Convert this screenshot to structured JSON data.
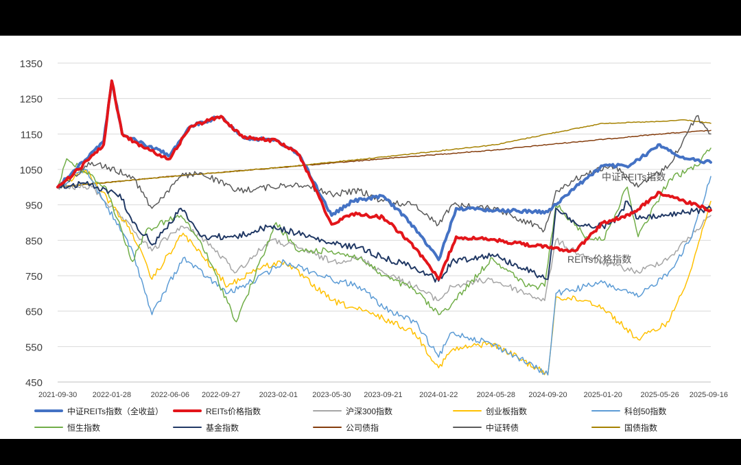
{
  "chart_data": {
    "type": "line",
    "y_ticks": [
      450,
      550,
      650,
      750,
      850,
      950,
      1050,
      1150,
      1250,
      1350
    ],
    "ylim": [
      450,
      1350
    ],
    "x_ticks": [
      "2021-09-30",
      "2022-01-28",
      "2022-06-06",
      "2022-09-27",
      "2023-02-01",
      "2023-05-30",
      "2023-09-21",
      "2024-01-22",
      "2024-05-28",
      "2024-09-20",
      "2025-01-20",
      "2025-05-26",
      "2025-09-16"
    ],
    "grid": "horizontal",
    "legend_placement": "bottom",
    "annotations": [
      "中证REITs指数",
      "REITs价格指数"
    ],
    "series": [
      {
        "name": "中证REITs指数（全收益）",
        "color": "#4472C4",
        "width": 4,
        "x": [
          "2021-09-30",
          "2021-11-15",
          "2022-01-10",
          "2022-01-28",
          "2022-02-20",
          "2022-04-10",
          "2022-06-06",
          "2022-07-20",
          "2022-09-27",
          "2022-11-15",
          "2023-02-01",
          "2023-03-20",
          "2023-05-30",
          "2023-07-15",
          "2023-09-21",
          "2023-11-20",
          "2024-01-05",
          "2024-01-22",
          "2024-03-01",
          "2024-05-28",
          "2024-09-20",
          "2024-11-20",
          "2025-01-20",
          "2025-03-20",
          "2025-05-26",
          "2025-07-20",
          "2025-09-16"
        ],
        "y": [
          1000,
          1060,
          1130,
          1300,
          1150,
          1120,
          1090,
          1170,
          1200,
          1140,
          1130,
          1090,
          920,
          960,
          975,
          900,
          825,
          795,
          940,
          935,
          930,
          1000,
          1060,
          1060,
          1120,
          1080,
          1070
        ]
      },
      {
        "name": "REITs价格指数",
        "color": "#E3151A",
        "width": 4,
        "x": [
          "2021-09-30",
          "2021-11-15",
          "2022-01-10",
          "2022-01-28",
          "2022-02-20",
          "2022-04-10",
          "2022-06-06",
          "2022-07-20",
          "2022-09-27",
          "2022-11-15",
          "2023-02-01",
          "2023-03-20",
          "2023-05-30",
          "2023-07-15",
          "2023-09-21",
          "2023-11-20",
          "2024-01-05",
          "2024-01-22",
          "2024-03-01",
          "2024-05-28",
          "2024-09-20",
          "2024-11-20",
          "2025-01-20",
          "2025-03-20",
          "2025-05-26",
          "2025-07-20",
          "2025-09-16"
        ],
        "y": [
          1000,
          1050,
          1120,
          1300,
          1150,
          1110,
          1080,
          1170,
          1200,
          1140,
          1130,
          1090,
          895,
          925,
          915,
          845,
          770,
          740,
          860,
          850,
          830,
          820,
          900,
          920,
          985,
          960,
          935
        ]
      },
      {
        "name": "沪深300指数",
        "color": "#A5A5A5",
        "width": 1.5,
        "x": [
          "2021-09-30",
          "2021-12-15",
          "2022-03-15",
          "2022-04-27",
          "2022-06-30",
          "2022-08-15",
          "2022-10-31",
          "2023-01-15",
          "2023-03-15",
          "2023-05-30",
          "2023-07-31",
          "2023-09-21",
          "2023-11-30",
          "2024-01-22",
          "2024-02-20",
          "2024-05-15",
          "2024-09-13",
          "2024-10-08",
          "2024-12-15",
          "2025-04-08",
          "2025-06-15",
          "2025-09-16"
        ],
        "y": [
          1000,
          1000,
          880,
          820,
          890,
          860,
          760,
          850,
          830,
          790,
          800,
          760,
          720,
          680,
          720,
          740,
          680,
          850,
          800,
          760,
          800,
          920
        ]
      },
      {
        "name": "创业板指数",
        "color": "#FFC000",
        "width": 1.5,
        "x": [
          "2021-09-30",
          "2021-12-01",
          "2022-03-15",
          "2022-04-27",
          "2022-07-05",
          "2022-10-12",
          "2022-12-15",
          "2023-02-15",
          "2023-05-30",
          "2023-09-21",
          "2023-11-30",
          "2024-01-22",
          "2024-02-20",
          "2024-05-15",
          "2024-07-15",
          "2024-09-20",
          "2024-10-08",
          "2024-12-15",
          "2025-01-20",
          "2025-04-08",
          "2025-06-15",
          "2025-08-01",
          "2025-09-16"
        ],
        "y": [
          1000,
          1050,
          870,
          740,
          870,
          720,
          770,
          790,
          680,
          630,
          590,
          490,
          540,
          560,
          520,
          470,
          690,
          680,
          660,
          570,
          620,
          760,
          960
        ]
      },
      {
        "name": "科创50指数",
        "color": "#5B9BD5",
        "width": 1.5,
        "x": [
          "2021-09-30",
          "2021-12-01",
          "2022-03-15",
          "2022-04-27",
          "2022-07-05",
          "2022-10-12",
          "2022-12-15",
          "2023-02-15",
          "2023-05-30",
          "2023-07-31",
          "2023-09-21",
          "2023-11-30",
          "2024-01-22",
          "2024-02-20",
          "2024-05-15",
          "2024-07-15",
          "2024-09-20",
          "2024-10-08",
          "2024-12-15",
          "2025-01-20",
          "2025-04-08",
          "2025-06-15",
          "2025-08-01",
          "2025-09-16"
        ],
        "y": [
          1000,
          1050,
          820,
          640,
          800,
          700,
          740,
          790,
          740,
          720,
          660,
          620,
          520,
          590,
          560,
          520,
          470,
          700,
          720,
          730,
          690,
          760,
          850,
          1030
        ]
      },
      {
        "name": "恒生指数",
        "color": "#70AD47",
        "width": 1.5,
        "x": [
          "2021-09-30",
          "2021-10-20",
          "2022-01-15",
          "2022-03-15",
          "2022-04-15",
          "2022-06-30",
          "2022-08-15",
          "2022-10-31",
          "2023-01-27",
          "2023-03-15",
          "2023-05-30",
          "2023-07-31",
          "2023-09-21",
          "2023-11-30",
          "2024-01-22",
          "2024-02-20",
          "2024-05-20",
          "2024-08-05",
          "2024-09-13",
          "2024-10-08",
          "2024-12-15",
          "2025-01-20",
          "2025-03-15",
          "2025-04-08",
          "2025-06-15",
          "2025-08-15",
          "2025-09-16"
        ],
        "y": [
          1000,
          1080,
          1000,
          790,
          880,
          920,
          840,
          620,
          900,
          820,
          820,
          800,
          750,
          710,
          640,
          670,
          800,
          720,
          720,
          950,
          860,
          850,
          1000,
          860,
          1020,
          1060,
          1110
        ]
      },
      {
        "name": "基金指数",
        "color": "#203864",
        "width": 2,
        "x": [
          "2021-09-30",
          "2021-12-01",
          "2022-02-15",
          "2022-03-15",
          "2022-05-01",
          "2022-06-30",
          "2022-08-15",
          "2022-10-31",
          "2023-01-15",
          "2023-03-15",
          "2023-05-30",
          "2023-07-31",
          "2023-09-21",
          "2023-11-30",
          "2024-01-22",
          "2024-02-20",
          "2024-05-20",
          "2024-09-20",
          "2024-10-08",
          "2024-11-30",
          "2025-01-20",
          "2025-02-15",
          "2025-03-15",
          "2025-04-08",
          "2025-06-15",
          "2025-09-16"
        ],
        "y": [
          1000,
          1010,
          980,
          900,
          840,
          940,
          860,
          860,
          890,
          870,
          840,
          830,
          800,
          775,
          735,
          790,
          810,
          740,
          940,
          890,
          890,
          900,
          960,
          910,
          920,
          940
        ]
      },
      {
        "name": "公司债指",
        "color": "#843C0C",
        "width": 1.5,
        "x": [
          "2021-09-30",
          "2022-06-06",
          "2023-02-01",
          "2023-09-21",
          "2024-05-28",
          "2024-09-20",
          "2025-05-26",
          "2025-09-16"
        ],
        "y": [
          1000,
          1030,
          1055,
          1080,
          1105,
          1120,
          1150,
          1160
        ]
      },
      {
        "name": "中证转债",
        "color": "#595959",
        "width": 1.5,
        "x": [
          "2021-09-30",
          "2021-12-15",
          "2022-03-15",
          "2022-04-27",
          "2022-06-30",
          "2022-08-15",
          "2022-10-31",
          "2023-01-15",
          "2023-03-15",
          "2023-05-30",
          "2023-07-31",
          "2023-09-21",
          "2023-11-30",
          "2024-01-22",
          "2024-02-20",
          "2024-05-28",
          "2024-09-13",
          "2024-10-08",
          "2024-12-15",
          "2025-02-15",
          "2025-04-08",
          "2025-06-15",
          "2025-08-15",
          "2025-09-16"
        ],
        "y": [
          1000,
          1070,
          1030,
          940,
          1030,
          1040,
          990,
          1000,
          1010,
          980,
          990,
          960,
          950,
          895,
          950,
          940,
          880,
          990,
          1040,
          1060,
          1000,
          1060,
          1200,
          1150
        ]
      },
      {
        "name": "国债指数",
        "color": "#A58100",
        "width": 1.5,
        "x": [
          "2021-09-30",
          "2022-06-06",
          "2023-02-01",
          "2023-09-21",
          "2024-05-28",
          "2024-09-20",
          "2025-01-20",
          "2025-05-26",
          "2025-07-20",
          "2025-09-16"
        ],
        "y": [
          1000,
          1030,
          1055,
          1085,
          1120,
          1150,
          1180,
          1185,
          1190,
          1180
        ]
      }
    ]
  }
}
